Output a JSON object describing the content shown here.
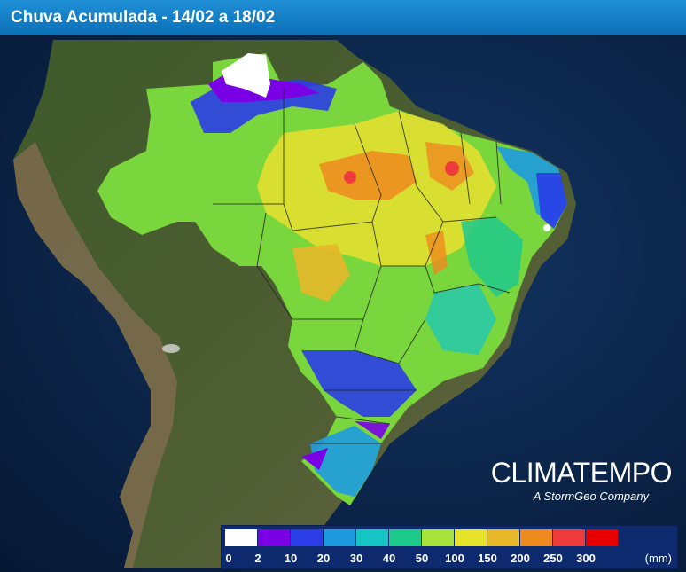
{
  "title": "Chuva Acumulada - 14/02 a 18/02",
  "brand": {
    "name": "CLIMATEMPO",
    "tagline": "A StormGeo Company"
  },
  "legend": {
    "colors": [
      "#ffffff",
      "#7a00e6",
      "#2a3de6",
      "#1e9be0",
      "#16c4c4",
      "#1ec98c",
      "#a6e23a",
      "#e6e22a",
      "#e6b82a",
      "#ef8a1e",
      "#ee3c3c",
      "#e60000"
    ],
    "labels": [
      "0",
      "2",
      "10",
      "20",
      "30",
      "40",
      "50",
      "100",
      "150",
      "200",
      "250",
      "300"
    ],
    "unit": "(mm)"
  },
  "colors": {
    "ocean": "#0b2346",
    "land": "#4a5a2e",
    "andes": "#7a6a4e",
    "header": "#1280c8"
  }
}
